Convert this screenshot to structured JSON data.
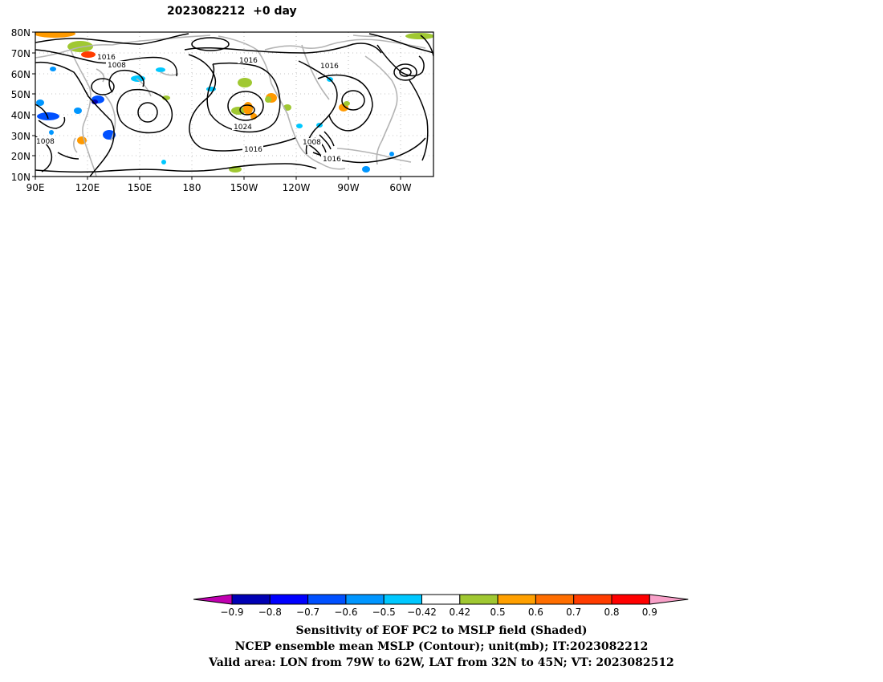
{
  "title": "2023082212  +0 day",
  "map": {
    "lat_ticks": [
      "80N",
      "70N",
      "60N",
      "50N",
      "40N",
      "30N",
      "20N",
      "10N"
    ],
    "lon_ticks": [
      "90E",
      "120E",
      "150E",
      "180",
      "150W",
      "120W",
      "90W",
      "60W"
    ],
    "contour_labels": [
      "1016",
      "1008",
      "1016",
      "1016",
      "1024",
      "1016",
      "1008",
      "1016",
      "1008"
    ],
    "contour_color": "#000000",
    "coast_color": "#b4b4b4"
  },
  "colorbar": {
    "tick_labels": [
      "-0.9",
      "-0.8",
      "-0.7",
      "-0.6",
      "-0.5",
      "-0.42",
      "0.42",
      "0.5",
      "0.6",
      "0.7",
      "0.8",
      "0.9"
    ],
    "colors": [
      "#c000b0",
      "#0000b4",
      "#0000ff",
      "#0050ff",
      "#0096ff",
      "#00c8ff",
      "#ffffff",
      "#a0c832",
      "#ffa000",
      "#ff6e00",
      "#ff3c00",
      "#ff0000",
      "#f8a0c8"
    ]
  },
  "caption": {
    "line1": "Sensitivity of EOF PC2 to MSLP field (Shaded)",
    "line2": "NCEP ensemble mean MSLP (Contour); unit(mb); IT:2023082212",
    "line3": "Valid area: LON from 79W to 62W, LAT from 32N to 45N; VT: 2023082512"
  }
}
